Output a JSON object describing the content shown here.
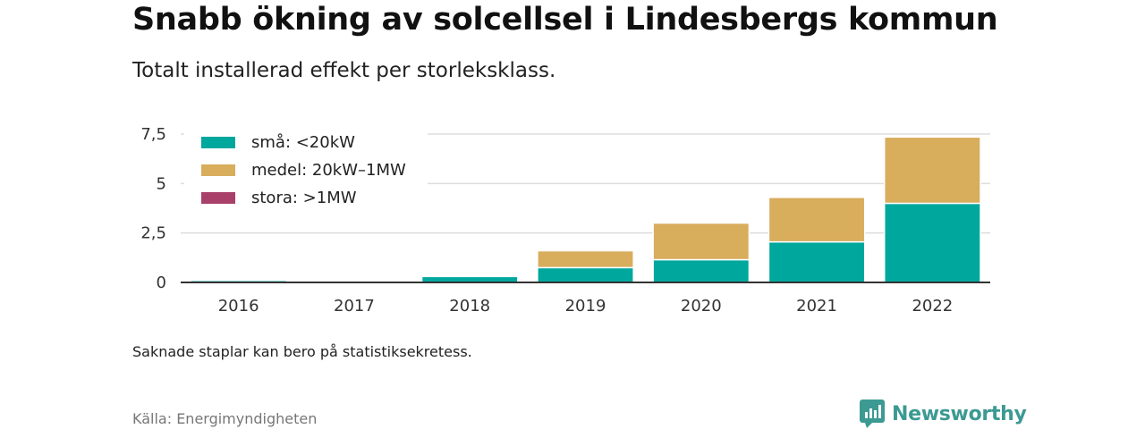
{
  "title": "Snabb ökning av solcellsel i Lindesbergs kommun",
  "subtitle": "Totalt installerad effekt per storleksklass.",
  "note": "Saknade staplar kan bero på statistiksekretess.",
  "source": "Källa: Energimyndigheten",
  "brand": {
    "name": "Newsworthy",
    "icon": "newsworthy-logo-icon",
    "color": "#3c9a93"
  },
  "chart_data": {
    "type": "bar",
    "stacked": true,
    "categories": [
      "2016",
      "2017",
      "2018",
      "2019",
      "2020",
      "2021",
      "2022"
    ],
    "series": [
      {
        "name": "små: <20kW",
        "color": "#00a79d",
        "values": [
          0.1,
          0,
          0.3,
          0.75,
          1.15,
          2.05,
          4.0
        ]
      },
      {
        "name": "medel: 20kW–1MW",
        "color": "#d8ad5c",
        "values": [
          0.05,
          0,
          0,
          0.85,
          1.85,
          2.25,
          3.35
        ]
      },
      {
        "name": "stora: >1MW",
        "color": "#a8406a",
        "values": [
          0,
          0,
          0,
          0,
          0,
          0,
          0
        ]
      }
    ],
    "ylim": [
      0,
      7.5
    ],
    "yticks": [
      0,
      2.5,
      5,
      7.5
    ],
    "ytick_labels": [
      "0",
      "2,5",
      "5",
      "7,5"
    ],
    "grid": true,
    "legend_position": "top-left"
  }
}
